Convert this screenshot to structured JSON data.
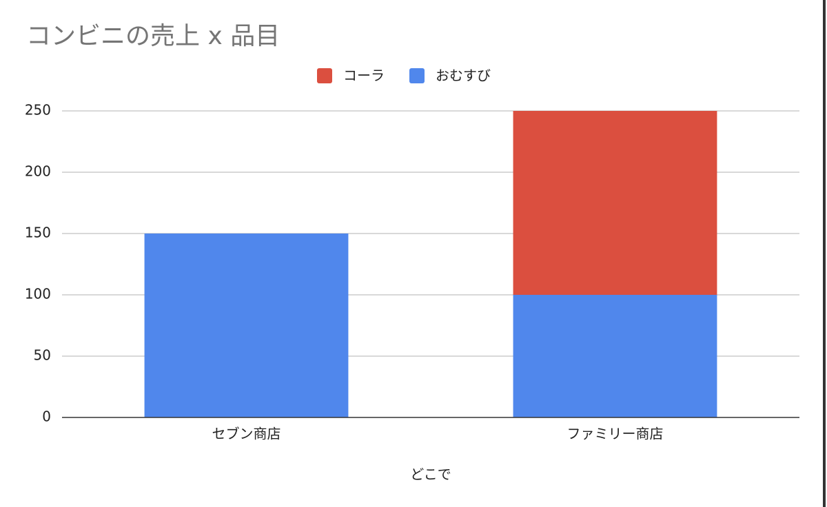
{
  "chart_data": {
    "type": "stacked_bar",
    "title": "コンビニの売上 x 品目",
    "x_label": "どこで",
    "categories": [
      "セブン商店",
      "ファミリー商店"
    ],
    "series": [
      {
        "name": "コーラ",
        "color": "#db4f3f",
        "values": [
          null,
          150
        ]
      },
      {
        "name": "おむすび",
        "color": "#5087ec",
        "values": [
          150,
          100
        ]
      }
    ],
    "stack_order": [
      "おむすび",
      "コーラ"
    ],
    "ylim": [
      0,
      250
    ],
    "yticks": [
      0,
      50,
      100,
      150,
      200,
      250
    ],
    "grid": true,
    "legend": "top"
  }
}
